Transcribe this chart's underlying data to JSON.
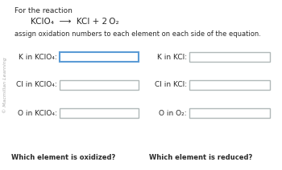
{
  "bg_color": "#ffffff",
  "title_line1": "For the reaction",
  "reaction_parts": [
    {
      "text": "KClO",
      "style": "normal"
    },
    {
      "text": "4",
      "style": "sub"
    },
    {
      "text": "  ⟶  KCl + 2 O",
      "style": "normal"
    },
    {
      "text": "2",
      "style": "sub"
    }
  ],
  "subtitle": "assign oxidation numbers to each element on each side of the equation.",
  "watermark": "© Macmillan Learning",
  "left_labels": [
    [
      "K in KClO",
      "4",
      ":"
    ],
    [
      "Cl in KClO",
      "4",
      ":"
    ],
    [
      "O in KClO",
      "4",
      ":"
    ]
  ],
  "right_labels": [
    [
      "K in KCl:"
    ],
    [
      "Cl in KCl:"
    ],
    [
      "O in O",
      "2",
      ":"
    ]
  ],
  "bottom_left": "Which element is oxidized?",
  "bottom_right": "Which element is reduced?",
  "box_color_active": "#5b9bd5",
  "box_color_inactive": "#b0b8b8",
  "text_color": "#2a2a2a",
  "font_size_title": 6.5,
  "font_size_reaction": 7.5,
  "font_size_sub": 6.0,
  "font_size_label": 6.5,
  "font_size_bottom": 6.0,
  "font_size_watermark": 4.5
}
